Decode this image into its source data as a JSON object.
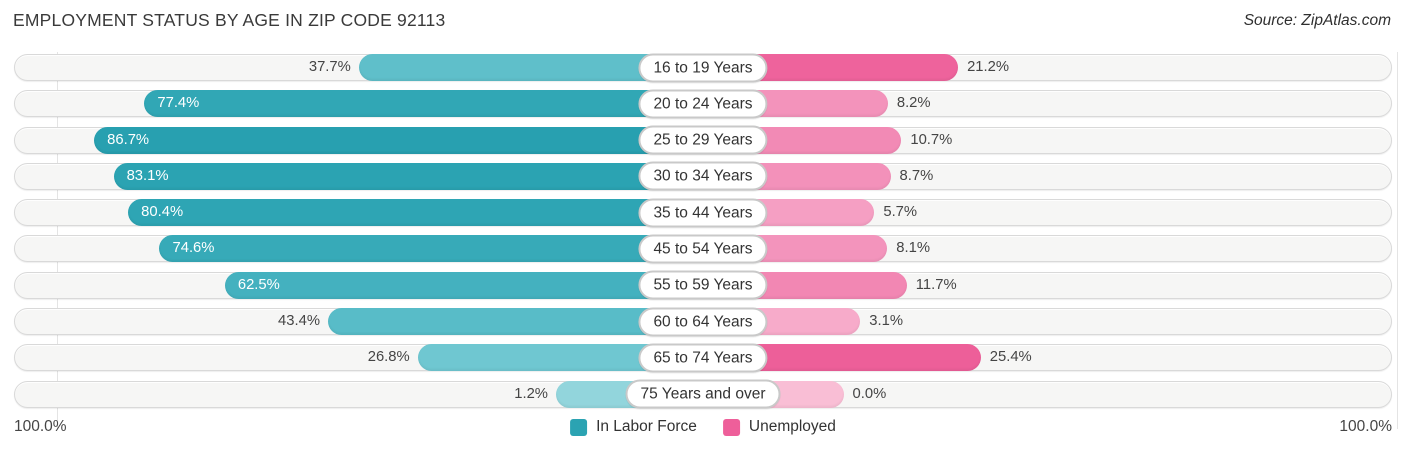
{
  "header": {
    "title": "EMPLOYMENT STATUS BY AGE IN ZIP CODE 92113",
    "source": "Source: ZipAtlas.com"
  },
  "axis": {
    "left_max_label": "100.0%",
    "right_max_label": "100.0%"
  },
  "legend": [
    {
      "label": "In Labor Force",
      "color": "#2ba3b2"
    },
    {
      "label": "Unemployed",
      "color": "#ee5f9a"
    }
  ],
  "chart_data": {
    "type": "bar",
    "orientation": "horizontal-diverging",
    "title": "EMPLOYMENT STATUS BY AGE IN ZIP CODE 92113",
    "xlim": [
      0,
      100
    ],
    "categories": [
      "16 to 19 Years",
      "20 to 24 Years",
      "25 to 29 Years",
      "30 to 34 Years",
      "35 to 44 Years",
      "45 to 54 Years",
      "55 to 59 Years",
      "60 to 64 Years",
      "65 to 74 Years",
      "75 Years and over"
    ],
    "series": [
      {
        "name": "In Labor Force",
        "values": [
          37.7,
          77.4,
          86.7,
          83.1,
          80.4,
          74.6,
          62.5,
          43.4,
          26.8,
          1.2
        ]
      },
      {
        "name": "Unemployed",
        "values": [
          21.2,
          8.2,
          10.7,
          8.7,
          5.7,
          8.1,
          11.7,
          3.1,
          25.4,
          0.0
        ]
      }
    ],
    "rows": [
      {
        "category": "16 to 19 Years",
        "labor_force": 37.7,
        "labor_label": "37.7%",
        "labor_color": "#5fbfca",
        "unemployed": 21.2,
        "unemployed_label": "21.2%",
        "unemployed_color": "#ee639c"
      },
      {
        "category": "20 to 24 Years",
        "labor_force": 77.4,
        "labor_label": "77.4%",
        "labor_color": "#31a7b5",
        "unemployed": 8.2,
        "unemployed_label": "8.2%",
        "unemployed_color": "#f393bb"
      },
      {
        "category": "25 to 29 Years",
        "labor_force": 86.7,
        "labor_label": "86.7%",
        "labor_color": "#28a0b0",
        "unemployed": 10.7,
        "unemployed_label": "10.7%",
        "unemployed_color": "#f28ab5"
      },
      {
        "category": "30 to 34 Years",
        "labor_force": 83.1,
        "labor_label": "83.1%",
        "labor_color": "#2ba3b2",
        "unemployed": 8.7,
        "unemployed_label": "8.7%",
        "unemployed_color": "#f391ba"
      },
      {
        "category": "35 to 44 Years",
        "labor_force": 80.4,
        "labor_label": "80.4%",
        "labor_color": "#2ea5b4",
        "unemployed": 5.7,
        "unemployed_label": "5.7%",
        "unemployed_color": "#f59fc3"
      },
      {
        "category": "45 to 54 Years",
        "labor_force": 74.6,
        "labor_label": "74.6%",
        "labor_color": "#37aab8",
        "unemployed": 8.1,
        "unemployed_label": "8.1%",
        "unemployed_color": "#f394bc"
      },
      {
        "category": "55 to 59 Years",
        "labor_force": 62.5,
        "labor_label": "62.5%",
        "labor_color": "#44b1bf",
        "unemployed": 11.7,
        "unemployed_label": "11.7%",
        "unemployed_color": "#f287b3"
      },
      {
        "category": "60 to 64 Years",
        "labor_force": 43.4,
        "labor_label": "43.4%",
        "labor_color": "#58bcc8",
        "unemployed": 3.1,
        "unemployed_label": "3.1%",
        "unemployed_color": "#f7abca"
      },
      {
        "category": "65 to 74 Years",
        "labor_force": 26.8,
        "labor_label": "26.8%",
        "labor_color": "#6fc7d1",
        "unemployed": 25.4,
        "unemployed_label": "25.4%",
        "unemployed_color": "#ed5f99"
      },
      {
        "category": "75 Years and over",
        "labor_force": 1.2,
        "labor_label": "1.2%",
        "labor_color": "#92d5dc",
        "unemployed": 0.0,
        "unemployed_label": "0.0%",
        "unemployed_color": "#f9bed5"
      }
    ]
  }
}
